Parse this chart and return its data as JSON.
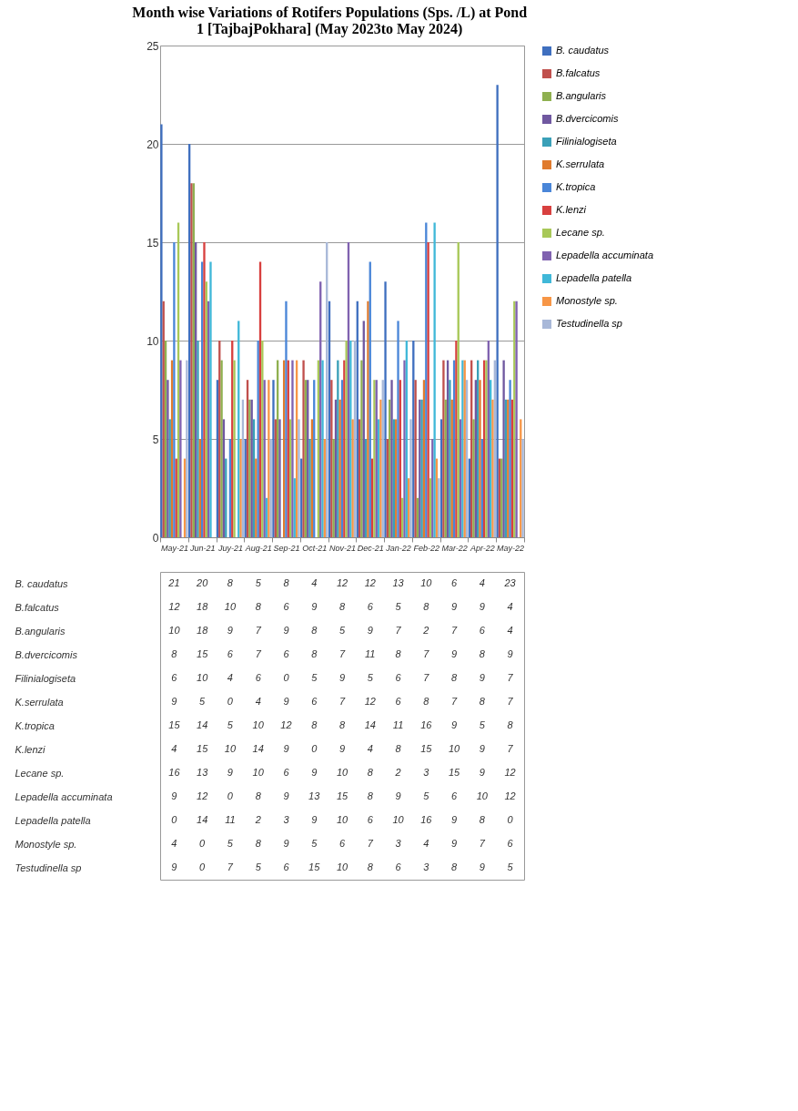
{
  "chart_data": {
    "type": "bar",
    "title": "Month wise Variations of Rotifers Populations (Sps. /L) at Pond 1 [TajbajPokhara] (May 2023to May 2024)",
    "categories": [
      "May-21",
      "Jun-21",
      "Juy-21",
      "Aug-21",
      "Sep-21",
      "Oct-21",
      "Nov-21",
      "Dec-21",
      "Jan-22",
      "Feb-22",
      "Mar-22",
      "Apr-22",
      "May-22"
    ],
    "series": [
      {
        "name": "B. caudatus",
        "color": "#3f6fbf",
        "values": [
          21,
          20,
          8,
          5,
          8,
          4,
          12,
          12,
          13,
          10,
          6,
          4,
          23
        ]
      },
      {
        "name": "B.falcatus",
        "color": "#c0504d",
        "values": [
          12,
          18,
          10,
          8,
          6,
          9,
          8,
          6,
          5,
          8,
          9,
          9,
          4
        ]
      },
      {
        "name": "B.angularis",
        "color": "#8fb050",
        "values": [
          10,
          18,
          9,
          7,
          9,
          8,
          5,
          9,
          7,
          2,
          7,
          6,
          4
        ]
      },
      {
        "name": "B.dvercicomis",
        "color": "#7058a0",
        "values": [
          8,
          15,
          6,
          7,
          6,
          8,
          7,
          11,
          8,
          7,
          9,
          8,
          9
        ]
      },
      {
        "name": "Filinialogiseta",
        "color": "#3aa0b8",
        "values": [
          6,
          10,
          4,
          6,
          0,
          5,
          9,
          5,
          6,
          7,
          8,
          9,
          7
        ]
      },
      {
        "name": "K.serrulata",
        "color": "#e07b2e",
        "values": [
          9,
          5,
          0,
          4,
          9,
          6,
          7,
          12,
          6,
          8,
          7,
          8,
          7
        ]
      },
      {
        "name": "K.tropica",
        "color": "#4a86d8",
        "values": [
          15,
          14,
          5,
          10,
          12,
          8,
          8,
          14,
          11,
          16,
          9,
          5,
          8
        ]
      },
      {
        "name": "K.lenzi",
        "color": "#d8403f",
        "values": [
          4,
          15,
          10,
          14,
          9,
          0,
          9,
          4,
          8,
          15,
          10,
          9,
          7
        ]
      },
      {
        "name": "Lecane sp.",
        "color": "#a8c858",
        "values": [
          16,
          13,
          9,
          10,
          6,
          9,
          10,
          8,
          2,
          3,
          15,
          9,
          12
        ]
      },
      {
        "name": "Lepadella accuminata",
        "color": "#8062b0",
        "values": [
          9,
          12,
          0,
          8,
          9,
          13,
          15,
          8,
          9,
          5,
          6,
          10,
          12
        ]
      },
      {
        "name": "Lepadella patella",
        "color": "#40b8d8",
        "values": [
          0,
          14,
          11,
          2,
          3,
          9,
          10,
          6,
          10,
          16,
          9,
          8,
          0
        ]
      },
      {
        "name": "Monostyle sp.",
        "color": "#f79646",
        "values": [
          4,
          0,
          5,
          8,
          9,
          5,
          6,
          7,
          3,
          4,
          9,
          7,
          6
        ]
      },
      {
        "name": "Testudinella sp",
        "color": "#a8b8d8",
        "values": [
          9,
          0,
          7,
          5,
          6,
          15,
          10,
          8,
          6,
          3,
          8,
          9,
          5
        ]
      }
    ],
    "ylim": [
      0,
      25
    ],
    "yticks": [
      0,
      5,
      10,
      15,
      20,
      25
    ],
    "grid": "y",
    "legend": "right",
    "data_labels": true
  }
}
